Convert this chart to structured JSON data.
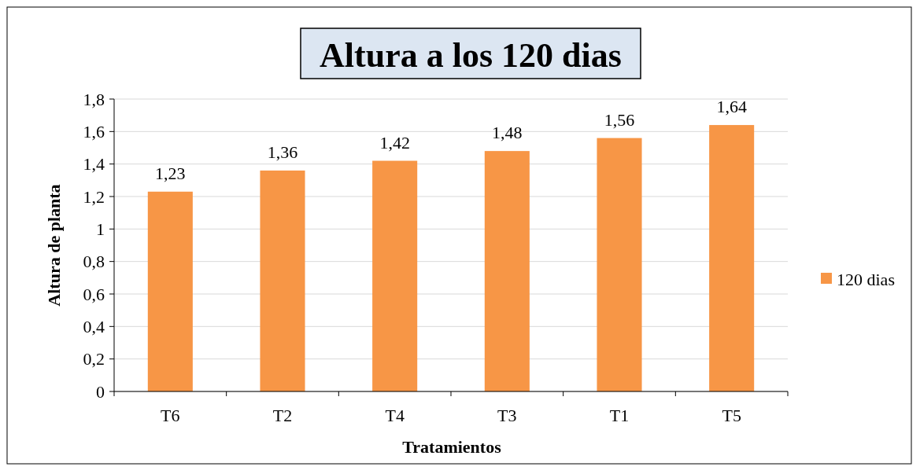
{
  "chart_data": {
    "type": "bar",
    "title": "Altura a los 120 dias",
    "xlabel": "Tratamientos",
    "ylabel": "Altura de planta",
    "categories": [
      "T6",
      "T2",
      "T4",
      "T3",
      "T1",
      "T5"
    ],
    "series": [
      {
        "name": "120 dias",
        "color": "#f79646",
        "values": [
          1.23,
          1.36,
          1.42,
          1.48,
          1.56,
          1.64
        ],
        "value_labels": [
          "1,23",
          "1,36",
          "1,42",
          "1,48",
          "1,56",
          "1,64"
        ]
      }
    ],
    "ylim": [
      0,
      1.8
    ],
    "yticks": [
      0,
      {
        "value": 0.2,
        "label": "0,2"
      },
      {
        "value": 0.4,
        "label": "0,4"
      },
      {
        "value": 0.6,
        "label": "0,6"
      },
      {
        "value": 0.8,
        "label": "0,8"
      },
      1,
      {
        "value": 1.2,
        "label": "1,2"
      },
      {
        "value": 1.4,
        "label": "1,4"
      },
      {
        "value": 1.6,
        "label": "1,6"
      },
      {
        "value": 1.8,
        "label": "1,8"
      }
    ],
    "grid": "y",
    "legend": "right"
  }
}
